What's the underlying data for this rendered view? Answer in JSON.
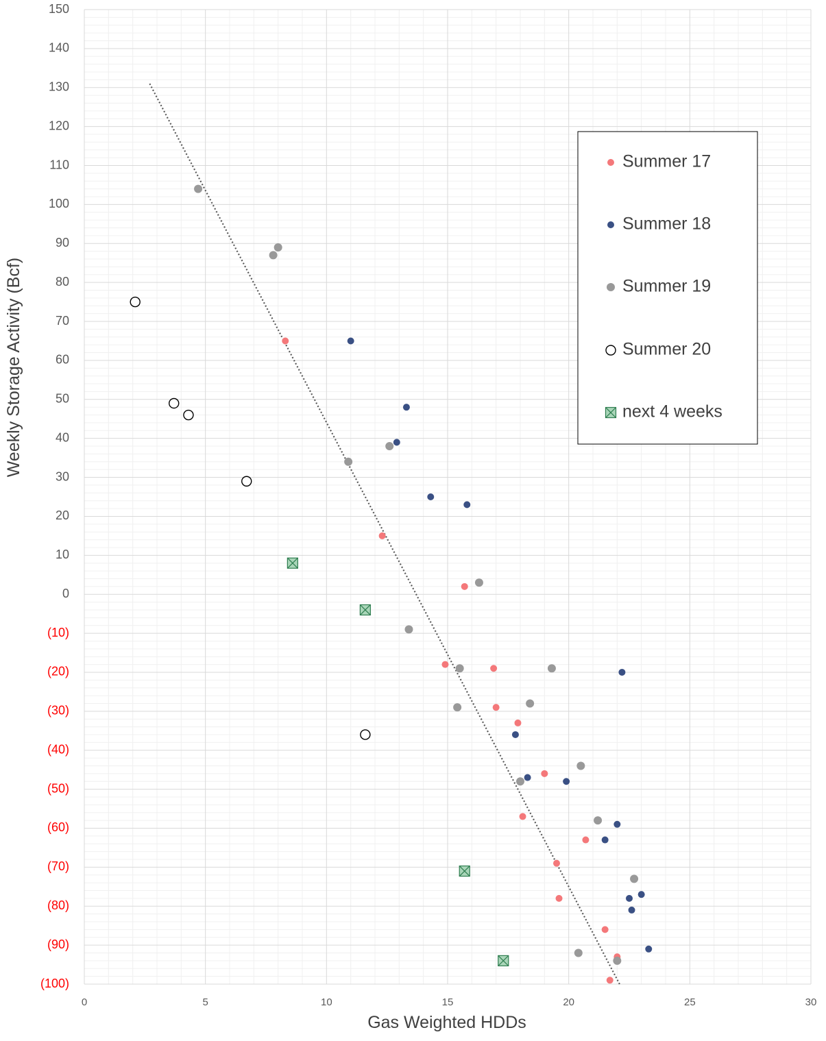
{
  "chart_data": {
    "type": "scatter",
    "title": "",
    "xlabel": "Gas Weighted HDDs",
    "ylabel": "Weekly Storage Activity (Bcf)",
    "xlim": [
      0,
      30
    ],
    "ylim": [
      -100,
      150
    ],
    "x_ticks": [
      0,
      5,
      10,
      15,
      20,
      25,
      30
    ],
    "x_tick_labels": [
      "0",
      "5",
      "10",
      "15",
      "20",
      "25",
      "30"
    ],
    "y_ticks": [
      150,
      140,
      130,
      120,
      110,
      100,
      90,
      80,
      70,
      60,
      50,
      40,
      30,
      20,
      10,
      0,
      -10,
      -20,
      -30,
      -40,
      -50,
      -60,
      -70,
      -80,
      -90,
      -100
    ],
    "y_tick_labels": [
      "150",
      "140",
      "130",
      "120",
      "110",
      "100",
      "90",
      "80",
      "70",
      "60",
      "50",
      "40",
      "30",
      "20",
      "10",
      "0",
      "(10)",
      "(20)",
      "(30)",
      "(40)",
      "(50)",
      "(60)",
      "(70)",
      "(80)",
      "(90)",
      "(100)"
    ],
    "negative_tick_color": "#ff0000",
    "positive_tick_color": "#595959",
    "grid": true,
    "minor_grid": true,
    "legend_position": "right",
    "series": [
      {
        "name": "Summer 17",
        "marker": "dot",
        "color": "#f4787a",
        "points": [
          [
            8.3,
            65
          ],
          [
            12.3,
            15
          ],
          [
            15.7,
            2
          ],
          [
            14.9,
            -18
          ],
          [
            16.9,
            -19
          ],
          [
            17.0,
            -29
          ],
          [
            17.9,
            -33
          ],
          [
            19.0,
            -46
          ],
          [
            18.1,
            -57
          ],
          [
            20.7,
            -63
          ],
          [
            19.5,
            -69
          ],
          [
            19.6,
            -78
          ],
          [
            21.5,
            -86
          ],
          [
            22.0,
            -93
          ],
          [
            21.7,
            -99
          ]
        ]
      },
      {
        "name": "Summer 18",
        "marker": "dot",
        "color": "#3a5084",
        "points": [
          [
            11.0,
            65
          ],
          [
            13.3,
            48
          ],
          [
            12.9,
            39
          ],
          [
            14.3,
            25
          ],
          [
            15.8,
            23
          ],
          [
            22.2,
            -20
          ],
          [
            17.8,
            -36
          ],
          [
            18.3,
            -47
          ],
          [
            19.9,
            -48
          ],
          [
            22.0,
            -59
          ],
          [
            21.5,
            -63
          ],
          [
            22.5,
            -78
          ],
          [
            23.0,
            -77
          ],
          [
            22.6,
            -81
          ],
          [
            23.3,
            -91
          ]
        ]
      },
      {
        "name": "Summer 19",
        "marker": "dot",
        "color": "#999999",
        "points": [
          [
            4.7,
            104
          ],
          [
            7.8,
            87
          ],
          [
            8.0,
            89
          ],
          [
            10.9,
            34
          ],
          [
            12.6,
            38
          ],
          [
            16.3,
            3
          ],
          [
            13.4,
            -9
          ],
          [
            15.5,
            -19
          ],
          [
            19.3,
            -19
          ],
          [
            15.4,
            -29
          ],
          [
            18.4,
            -28
          ],
          [
            20.5,
            -44
          ],
          [
            18.0,
            -48
          ],
          [
            21.2,
            -58
          ],
          [
            22.7,
            -73
          ],
          [
            20.4,
            -92
          ],
          [
            22.0,
            -94
          ]
        ]
      },
      {
        "name": "Summer 20",
        "marker": "open-circle",
        "color": "#000000",
        "points": [
          [
            2.1,
            75
          ],
          [
            3.7,
            49
          ],
          [
            4.3,
            46
          ],
          [
            6.7,
            29
          ],
          [
            11.6,
            -36
          ]
        ]
      },
      {
        "name": "next 4 weeks",
        "marker": "crossed-square",
        "color": "#a9d5b8",
        "edge_color": "#2e7d4f",
        "points": [
          [
            8.6,
            8
          ],
          [
            11.6,
            -4
          ],
          [
            15.7,
            -71
          ],
          [
            17.3,
            -94
          ]
        ]
      }
    ],
    "trendline": {
      "style": "dotted",
      "color": "#595959",
      "x_range": [
        2.7,
        22.1
      ],
      "y_at_start": 131,
      "y_at_end": -100
    }
  }
}
